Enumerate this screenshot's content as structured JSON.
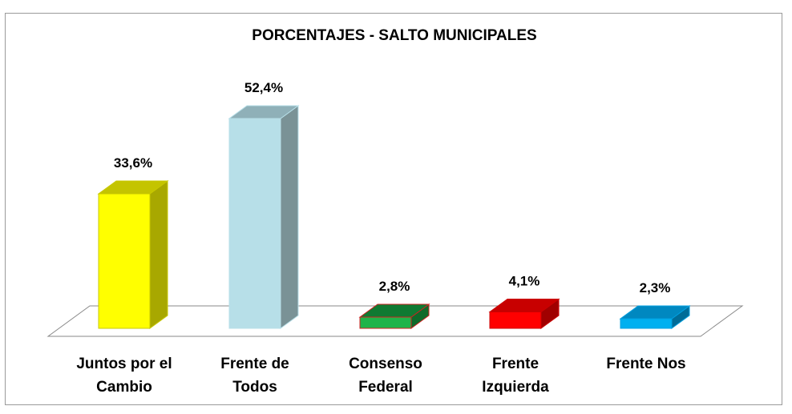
{
  "chart_data": {
    "type": "bar",
    "title": "PORCENTAJES - SALTO MUNICIPALES",
    "categories": [
      [
        "Juntos por el",
        "Cambio"
      ],
      [
        "Frente de",
        "Todos"
      ],
      [
        "Consenso",
        "Federal"
      ],
      [
        "Frente",
        "Izquierda"
      ],
      [
        "Frente Nos"
      ]
    ],
    "values": [
      33.6,
      52.4,
      2.8,
      4.1,
      2.3
    ],
    "data_labels": [
      "33,6%",
      "52,4%",
      "2,8%",
      "4,1%",
      "2,3%"
    ],
    "ylim": [
      0,
      55
    ],
    "grid": false,
    "legend": "none",
    "colors": [
      {
        "front": "#ffff00",
        "top": "#c4c400",
        "side": "#a8a800",
        "stroke": "#c8c800"
      },
      {
        "front": "#b7dfe8",
        "top": "#8fb0b8",
        "side": "#7a9296",
        "stroke": "#b7dfe8"
      },
      {
        "front": "#1fb44a",
        "top": "#0f7a32",
        "side": "#0e6a2a",
        "stroke": "#cc2222"
      },
      {
        "front": "#ff0000",
        "top": "#c80000",
        "side": "#a00000",
        "stroke": "#cc0000"
      },
      {
        "front": "#00b0f0",
        "top": "#0088c0",
        "side": "#006c98",
        "stroke": "#00a0e0"
      }
    ]
  }
}
